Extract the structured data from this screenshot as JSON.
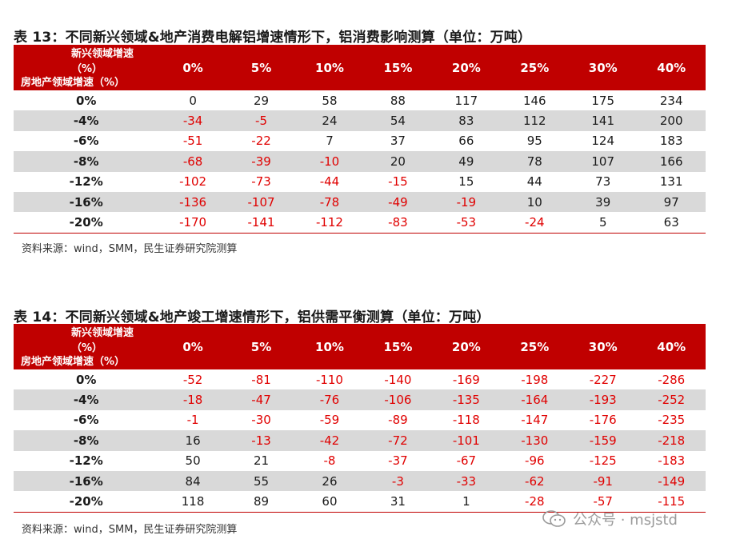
{
  "tables": [
    {
      "title": "表 13：不同新兴领域&地产消费电解铝增速情形下，铝消费影响测算（单位：万吨）",
      "corner_top": "新兴领域增速（%）",
      "corner_bottom": "房地产领域增速（%）",
      "columns": [
        "0%",
        "5%",
        "10%",
        "15%",
        "20%",
        "25%",
        "30%",
        "40%"
      ],
      "rows": [
        {
          "label": "0%",
          "values": [
            "0",
            "29",
            "58",
            "88",
            "117",
            "146",
            "175",
            "234"
          ]
        },
        {
          "label": "-4%",
          "values": [
            "-34",
            "-5",
            "24",
            "54",
            "83",
            "112",
            "141",
            "200"
          ]
        },
        {
          "label": "-6%",
          "values": [
            "-51",
            "-22",
            "7",
            "37",
            "66",
            "95",
            "124",
            "183"
          ]
        },
        {
          "label": "-8%",
          "values": [
            "-68",
            "-39",
            "-10",
            "20",
            "49",
            "78",
            "107",
            "166"
          ]
        },
        {
          "label": "-12%",
          "values": [
            "-102",
            "-73",
            "-44",
            "-15",
            "15",
            "44",
            "73",
            "131"
          ]
        },
        {
          "label": "-16%",
          "values": [
            "-136",
            "-107",
            "-78",
            "-49",
            "-19",
            "10",
            "39",
            "97"
          ]
        },
        {
          "label": "-20%",
          "values": [
            "-170",
            "-141",
            "-112",
            "-83",
            "-53",
            "-24",
            "5",
            "63"
          ]
        }
      ],
      "source": "资料来源：wind，SMM，民生证券研究院测算"
    },
    {
      "title": "表 14：不同新兴领域&地产竣工增速情形下，铝供需平衡测算（单位：万吨）",
      "corner_top": "新兴领域增速（%）",
      "corner_bottom": "房地产领域增速（%）",
      "columns": [
        "0%",
        "5%",
        "10%",
        "15%",
        "20%",
        "25%",
        "30%",
        "40%"
      ],
      "rows": [
        {
          "label": "0%",
          "values": [
            "-52",
            "-81",
            "-110",
            "-140",
            "-169",
            "-198",
            "-227",
            "-286"
          ]
        },
        {
          "label": "-4%",
          "values": [
            "-18",
            "-47",
            "-76",
            "-106",
            "-135",
            "-164",
            "-193",
            "-252"
          ]
        },
        {
          "label": "-6%",
          "values": [
            "-1",
            "-30",
            "-59",
            "-89",
            "-118",
            "-147",
            "-176",
            "-235"
          ]
        },
        {
          "label": "-8%",
          "values": [
            "16",
            "-13",
            "-42",
            "-72",
            "-101",
            "-130",
            "-159",
            "-218"
          ]
        },
        {
          "label": "-12%",
          "values": [
            "50",
            "21",
            "-8",
            "-37",
            "-67",
            "-96",
            "-125",
            "-183"
          ]
        },
        {
          "label": "-16%",
          "values": [
            "84",
            "55",
            "26",
            "-3",
            "-33",
            "-62",
            "-91",
            "-149"
          ]
        },
        {
          "label": "-20%",
          "values": [
            "118",
            "89",
            "60",
            "31",
            "1",
            "-28",
            "-57",
            "-115"
          ]
        }
      ],
      "source": "资料来源：wind，SMM，民生证券研究院测算"
    }
  ],
  "colors": {
    "header_bg": "#c00000",
    "negative": "#e00000",
    "stripe": "#d9d9d9"
  },
  "watermark": {
    "icon": "wechat-icon",
    "text": "公众号 · msjstd"
  }
}
